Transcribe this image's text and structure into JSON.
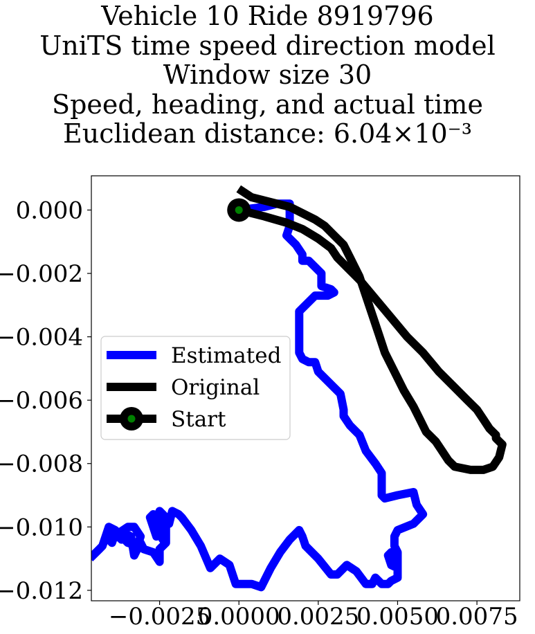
{
  "chart_data": {
    "type": "line",
    "title_lines": [
      "Vehicle 10 Ride 8919796",
      "UniTS time speed direction model",
      "Window size 30",
      "Speed, heading, and actual time",
      "Euclidean distance: 6.04×10⁻³"
    ],
    "xlim": [
      -0.00465,
      0.00885
    ],
    "ylim": [
      -0.01233,
      0.00108
    ],
    "xticks": [
      -0.0025,
      0.0,
      0.0025,
      0.005,
      0.0075
    ],
    "xtick_labels": [
      "−0.0025",
      "0.0000",
      "0.0025",
      "0.0050",
      "0.0075"
    ],
    "yticks": [
      0.0,
      -0.002,
      -0.004,
      -0.006,
      -0.008,
      -0.01,
      -0.012
    ],
    "ytick_labels": [
      "0.000",
      "−0.002",
      "−0.004",
      "−0.006",
      "−0.008",
      "−0.010",
      "−0.012"
    ],
    "grid": false,
    "legend_position": "center-left",
    "series": [
      {
        "name": "Estimated",
        "color": "#0000ff",
        "x": [
          0.0,
          0.0008,
          0.0012,
          0.0016,
          0.0016,
          0.0015,
          0.0018,
          0.002,
          0.002,
          0.0022,
          0.0024,
          0.0026,
          0.0026,
          0.0029,
          0.003,
          0.0028,
          0.0024,
          0.0019,
          0.0019,
          0.0019,
          0.002,
          0.0022,
          0.0024,
          0.0025,
          0.0028,
          0.0032,
          0.0033,
          0.0033,
          0.0035,
          0.0038,
          0.004,
          0.0043,
          0.0045,
          0.0045,
          0.0046,
          0.005,
          0.0055,
          0.0056,
          0.0058,
          0.0055,
          0.005,
          0.0049,
          0.0049,
          0.005,
          0.005,
          0.0048,
          0.0047,
          0.0048,
          0.005,
          0.005,
          0.0048,
          0.0047,
          0.0045,
          0.0043,
          0.0042,
          0.004,
          0.0037,
          0.0034,
          0.0031,
          0.0029,
          0.0025,
          0.0021,
          0.002,
          0.0019,
          0.0016,
          0.0013,
          0.001,
          0.0007,
          0.0004,
          0.0001,
          -0.0001,
          -0.0003,
          -0.0006,
          -0.0009,
          -0.0012,
          -0.0015,
          -0.0018,
          -0.0019,
          -0.0021,
          -0.0022,
          -0.0023,
          -0.0025,
          -0.0026,
          -0.0027,
          -0.0025,
          -0.0024,
          -0.0025,
          -0.0026,
          -0.0028,
          -0.0027,
          -0.0024,
          -0.0023,
          -0.0023,
          -0.0025,
          -0.0025,
          -0.0027,
          -0.003,
          -0.0031,
          -0.0033,
          -0.0034,
          -0.0036,
          -0.0037,
          -0.0039,
          -0.004,
          -0.0041,
          -0.0038,
          -0.0035,
          -0.0033,
          -0.0031,
          -0.0032,
          -0.0035,
          -0.0039,
          -0.0041,
          -0.0042,
          -0.0043,
          -0.0044,
          -0.0046
        ],
        "y": [
          0.0,
          0.0001,
          0.0002,
          0.0002,
          -0.0005,
          -0.0008,
          -0.0011,
          -0.0014,
          -0.0016,
          -0.0016,
          -0.0018,
          -0.002,
          -0.0024,
          -0.0025,
          -0.0026,
          -0.0027,
          -0.0027,
          -0.0032,
          -0.004,
          -0.0045,
          -0.0047,
          -0.0048,
          -0.0048,
          -0.0051,
          -0.0054,
          -0.0058,
          -0.0063,
          -0.0065,
          -0.0068,
          -0.0071,
          -0.0076,
          -0.008,
          -0.0083,
          -0.009,
          -0.0091,
          -0.009,
          -0.0089,
          -0.0093,
          -0.0096,
          -0.0099,
          -0.0101,
          -0.0103,
          -0.0106,
          -0.0108,
          -0.0113,
          -0.0112,
          -0.0109,
          -0.0108,
          -0.0112,
          -0.0116,
          -0.0117,
          -0.0118,
          -0.0118,
          -0.0116,
          -0.0118,
          -0.0118,
          -0.0114,
          -0.0112,
          -0.0115,
          -0.0115,
          -0.011,
          -0.0106,
          -0.0103,
          -0.0101,
          -0.0104,
          -0.0108,
          -0.0113,
          -0.0119,
          -0.0118,
          -0.0118,
          -0.0118,
          -0.0112,
          -0.011,
          -0.0113,
          -0.0106,
          -0.0101,
          -0.0097,
          -0.0096,
          -0.0095,
          -0.0099,
          -0.0097,
          -0.0095,
          -0.0098,
          -0.0097,
          -0.0101,
          -0.0104,
          -0.0102,
          -0.0103,
          -0.0097,
          -0.0096,
          -0.0097,
          -0.01,
          -0.0105,
          -0.0107,
          -0.0111,
          -0.0108,
          -0.0107,
          -0.0105,
          -0.0109,
          -0.0103,
          -0.0102,
          -0.0104,
          -0.0102,
          -0.0105,
          -0.0104,
          -0.0102,
          -0.01,
          -0.01,
          -0.0103,
          -0.0106,
          -0.0105,
          -0.0101,
          -0.01,
          -0.0103,
          -0.0106,
          -0.0107,
          -0.0109
        ]
      },
      {
        "name": "Original",
        "color": "#000000",
        "x": [
          0.0,
          0.0008,
          0.0015,
          0.002,
          0.0025,
          0.0029,
          0.0031,
          0.0034,
          0.0038,
          0.0043,
          0.0048,
          0.0053,
          0.0058,
          0.0063,
          0.0068,
          0.0072,
          0.0075,
          0.0077,
          0.0079,
          0.0081,
          0.0081,
          0.0083,
          0.0082,
          0.008,
          0.0077,
          0.0073,
          0.0068,
          0.0066,
          0.0064,
          0.0062,
          0.0059,
          0.0057,
          0.0055,
          0.0052,
          0.0049,
          0.0046,
          0.0044,
          0.0042,
          0.004,
          0.0038,
          0.0035,
          0.0033,
          0.003,
          0.0027,
          0.0024,
          0.002,
          0.0016,
          0.0012,
          0.0008,
          0.0004,
          0.0001
        ],
        "y": [
          0.0,
          -0.0002,
          -0.0004,
          -0.0006,
          -0.0009,
          -0.0012,
          -0.0015,
          -0.0018,
          -0.0022,
          -0.0028,
          -0.0034,
          -0.004,
          -0.0045,
          -0.0051,
          -0.0056,
          -0.006,
          -0.0063,
          -0.0066,
          -0.0069,
          -0.0071,
          -0.0072,
          -0.0074,
          -0.0078,
          -0.0081,
          -0.0082,
          -0.0082,
          -0.0081,
          -0.0079,
          -0.0076,
          -0.0073,
          -0.007,
          -0.0066,
          -0.0062,
          -0.0057,
          -0.0051,
          -0.0045,
          -0.0039,
          -0.0033,
          -0.0027,
          -0.0021,
          -0.0015,
          -0.0011,
          -0.0008,
          -0.0005,
          -0.0003,
          -0.0001,
          0.0001,
          0.0002,
          0.0003,
          0.0004,
          0.0006
        ]
      }
    ],
    "start_point": {
      "label": "Start",
      "x": 0.0,
      "y": 0.0,
      "color": "#008000",
      "outer_color": "#000000"
    }
  }
}
